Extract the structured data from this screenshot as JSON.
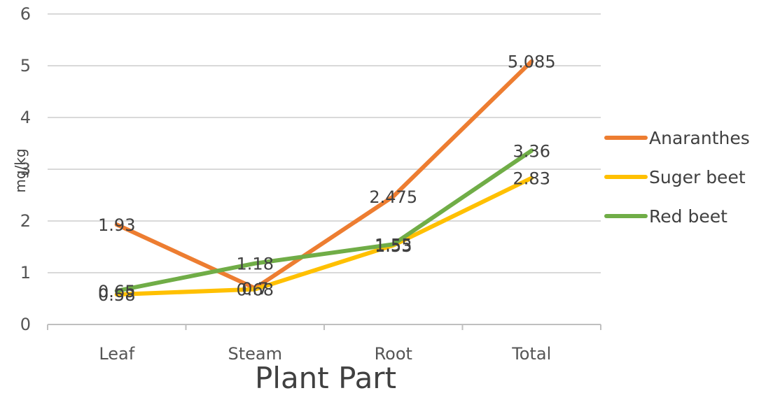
{
  "chart_data": {
    "type": "line",
    "title": "",
    "xlabel": "Plant Part",
    "ylabel": "mg/kg",
    "categories": [
      "Leaf",
      "Steam",
      "Root",
      "Total"
    ],
    "ylim": [
      0,
      6
    ],
    "yticks": [
      0,
      1,
      2,
      3,
      4,
      5,
      6
    ],
    "grid": true,
    "legend_position": "right",
    "series": [
      {
        "name": "Anaranthes",
        "color": "#ed7d31",
        "values": [
          1.93,
          0.7,
          2.475,
          5.085
        ],
        "labels": [
          "1.93",
          "0.7",
          "2.475",
          "5.085"
        ]
      },
      {
        "name": "Suger beet",
        "color": "#ffc000",
        "values": [
          0.58,
          0.68,
          1.53,
          2.83
        ],
        "labels": [
          "0.58",
          "0.68",
          "1.53",
          "2.83"
        ]
      },
      {
        "name": "Red beet",
        "color": "#70ad47",
        "values": [
          0.65,
          1.18,
          1.55,
          3.36
        ],
        "labels": [
          "0.65",
          "1.18",
          "1.55",
          "3.36"
        ]
      }
    ]
  }
}
